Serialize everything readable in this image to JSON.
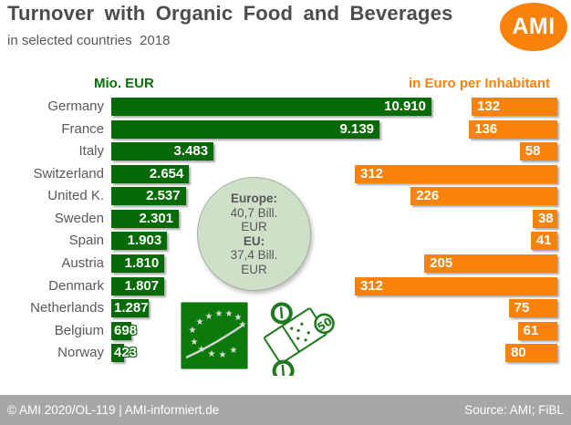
{
  "header": {
    "title": "Turnover with Organic Food and Beverages",
    "subtitle": "in selected countries  2018",
    "logo_text": "AMI"
  },
  "chart_data": {
    "type": "bar",
    "orientation": "horizontal",
    "categories": [
      "Germany",
      "France",
      "Italy",
      "Switzerland",
      "United K.",
      "Sweden",
      "Spain",
      "Austria",
      "Denmark",
      "Netherlands",
      "Belgium",
      "Norway"
    ],
    "series": [
      {
        "name": "Mio. EUR",
        "color": "#066a06",
        "values": [
          10910,
          9139,
          3483,
          2654,
          2537,
          2301,
          1903,
          1810,
          1807,
          1287,
          698,
          423
        ],
        "labels": [
          "10.910",
          "9.139",
          "3.483",
          "2.654",
          "2.537",
          "2.301",
          "1.903",
          "1.810",
          "1.807",
          "1.287",
          "698",
          "423"
        ]
      },
      {
        "name": "in Euro per Inhabitant",
        "color": "#f8820b",
        "values": [
          132,
          136,
          58,
          312,
          226,
          38,
          41,
          205,
          312,
          75,
          61,
          80
        ],
        "labels": [
          "132",
          "136",
          "58",
          "312",
          "226",
          "38",
          "41",
          "205",
          "312",
          "75",
          "61",
          "80"
        ]
      }
    ],
    "left_axis_label": "Mio. EUR",
    "right_axis_label": "in Euro per Inhabitant",
    "legend_position": "top",
    "grid": false
  },
  "annotation": {
    "lines": [
      "Europe:",
      "40,7 Bill.",
      "EUR",
      "EU:",
      "37,4 Bill.",
      "EUR"
    ]
  },
  "icons": {
    "ami_logo": "orange-ellipse-ami-logo",
    "eu_organic": "eu-organic-leaf-logo",
    "cart": "shopping-cart-line-art"
  },
  "colors": {
    "green_bar": "#066a06",
    "orange_bar": "#f8820b",
    "bubble_fill": "#cfe0c9",
    "footer_gray": "#a7a7a7",
    "title_gray": "#4c4c4c"
  },
  "footer": {
    "left": "© AMI 2020/OL-119 | AMI-informiert.de",
    "right": "Source: AMI; FiBL"
  }
}
